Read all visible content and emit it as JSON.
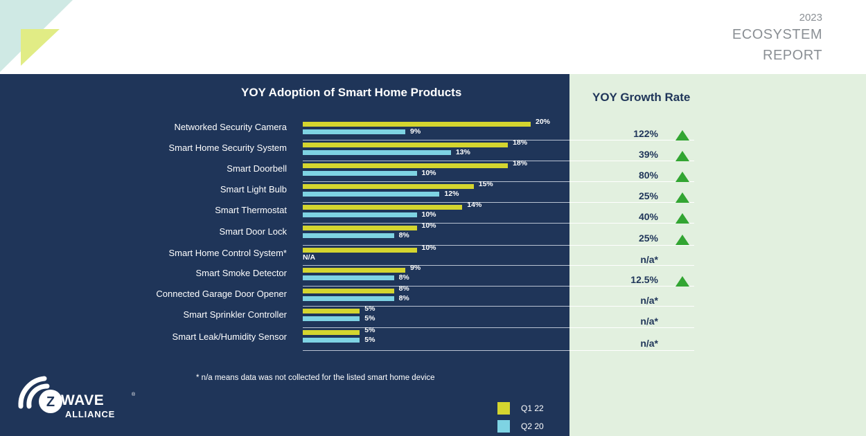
{
  "header": {
    "year": "2023",
    "line1": "ECOSYSTEM",
    "line2": "REPORT"
  },
  "colors": {
    "navy": "#1f3559",
    "q1": "#d4d52f",
    "q2": "#7ed3e3",
    "growth_bg": "#e2f0df",
    "up_arrow": "#32a532"
  },
  "chart_data": {
    "type": "bar",
    "orientation": "horizontal",
    "title": "YOY Adoption of Smart Home Products",
    "categories": [
      "Networked Security Camera",
      "Smart Home Security System",
      "Smart Doorbell",
      "Smart Light Bulb",
      "Smart Thermostat",
      "Smart Door Lock",
      "Smart Home Control System*",
      "Smart Smoke Detector",
      "Connected Garage Door Opener",
      "Smart Sprinkler Controller",
      "Smart Leak/Humidity Sensor"
    ],
    "series": [
      {
        "name": "Q1 22",
        "values": [
          20,
          18,
          18,
          15,
          14,
          10,
          10,
          9,
          8,
          5,
          5
        ],
        "labels": [
          "20%",
          "18%",
          "18%",
          "15%",
          "14%",
          "10%",
          "10%",
          "9%",
          "8%",
          "5%",
          "5%"
        ]
      },
      {
        "name": "Q2 20",
        "values": [
          9,
          13,
          10,
          12,
          10,
          8,
          null,
          8,
          8,
          5,
          5
        ],
        "labels": [
          "9%",
          "13%",
          "10%",
          "12%",
          "10%",
          "8%",
          "N/A",
          "8%",
          "8%",
          "5%",
          "5%"
        ]
      }
    ],
    "xlim": [
      0,
      20
    ],
    "legend": [
      "Q1 22",
      "Q2 20"
    ],
    "legend_position": "bottom-right",
    "growth": {
      "title": "YOY Growth Rate",
      "values": [
        "122%",
        "39%",
        "80%",
        "25%",
        "40%",
        "25%",
        "n/a*",
        "12.5%",
        "n/a*",
        "n/a*",
        "n/a*"
      ],
      "up": [
        true,
        true,
        true,
        true,
        true,
        true,
        false,
        true,
        false,
        false,
        false
      ]
    },
    "footnote": "* n/a means data was not collected for the listed smart home device"
  },
  "logo": {
    "text": "WAVE",
    "letter": "Z",
    "sub": "ALLIANCE",
    "mark": "®"
  }
}
